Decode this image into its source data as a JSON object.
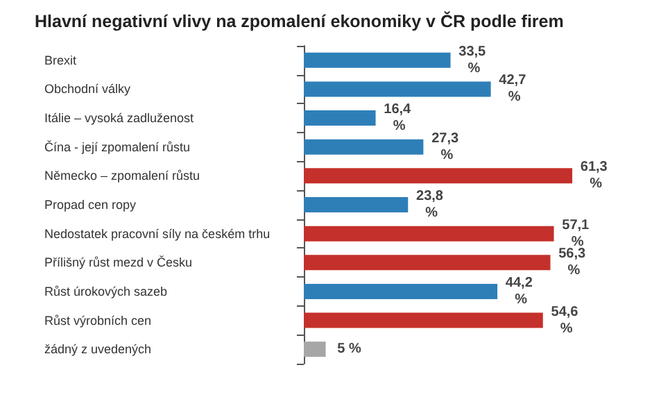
{
  "chart_data": {
    "type": "bar",
    "orientation": "horizontal",
    "title": "Hlavní negativní vlivy na zpomalení ekonomiky v ČR podle firem",
    "categories": [
      "Brexit",
      "Obchodní války",
      "Itálie – vysoká zadluženost",
      "Čína - její zpomalení růstu",
      "Německo – zpomalení růstu",
      "Propad cen ropy",
      "Nedostatek pracovní síly na českém trhu",
      "Přílišný růst mezd v Česku",
      "Růst úrokových sazeb",
      "Růst výrobních cen",
      "žádný z uvedených"
    ],
    "values": [
      33.5,
      42.7,
      16.4,
      27.3,
      61.3,
      23.8,
      57.1,
      56.3,
      44.2,
      54.6,
      5
    ],
    "value_labels": [
      "33,5 %",
      "42,7 %",
      "16,4 %",
      "27,3 %",
      "61,3 %",
      "23,8 %",
      "57,1 %",
      "56,3 %",
      "44,2 %",
      "54,6 %",
      "5 %"
    ],
    "colors": [
      "#2e7fb8",
      "#2e7fb8",
      "#2e7fb8",
      "#2e7fb8",
      "#c4302b",
      "#2e7fb8",
      "#c4302b",
      "#c4302b",
      "#2e7fb8",
      "#c4302b",
      "#a6a6a6"
    ],
    "grid": false
  }
}
